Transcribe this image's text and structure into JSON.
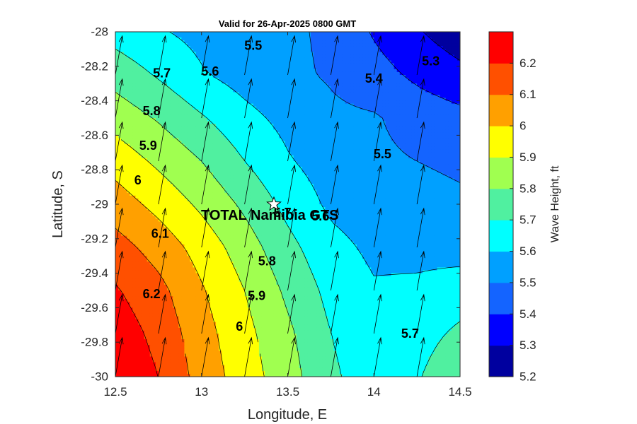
{
  "chart_data": {
    "type": "contour",
    "title": "Valid for 26-Apr-2025 0800 GMT",
    "xlabel": "Longitude, E",
    "ylabel": "Latitude, S",
    "xlim": [
      12.5,
      14.5
    ],
    "ylim": [
      -30,
      -28
    ],
    "x_ticks": [
      "12.5",
      "13",
      "13.5",
      "14",
      "14.5"
    ],
    "y_ticks": [
      "-28",
      "-28.2",
      "-28.4",
      "-28.6",
      "-28.8",
      "-29",
      "-29.2",
      "-29.4",
      "-29.6",
      "-29.8",
      "-30"
    ],
    "colorbar": {
      "label": "Wave Height, ft",
      "levels": [
        5.2,
        5.3,
        5.4,
        5.5,
        5.6,
        5.7,
        5.8,
        5.9,
        6.0,
        6.1,
        6.2,
        6.3
      ],
      "tick_labels": [
        "5.2",
        "5.3",
        "5.4",
        "5.5",
        "5.6",
        "5.7",
        "5.8",
        "5.9",
        "6",
        "6.1",
        "6.2"
      ],
      "colors": [
        "#00009f",
        "#0000ff",
        "#1464ff",
        "#00a0ff",
        "#00ffff",
        "#50f0a0",
        "#a0ff50",
        "#ffff00",
        "#ffa000",
        "#ff5000",
        "#ff0000"
      ]
    },
    "grid_lon": [
      12.5,
      12.75,
      13.0,
      13.25,
      13.5,
      13.75,
      14.0,
      14.25,
      14.5
    ],
    "grid_lat": [
      -28.0,
      -28.25,
      -28.5,
      -28.75,
      -29.0,
      -29.25,
      -29.5,
      -29.75,
      -30.0
    ],
    "wave_height": [
      [
        5.66,
        5.61,
        5.57,
        5.53,
        5.52,
        5.48,
        5.39,
        5.31,
        5.24
      ],
      [
        5.76,
        5.69,
        5.61,
        5.56,
        5.52,
        5.49,
        5.44,
        5.38,
        5.33
      ],
      [
        5.86,
        5.79,
        5.71,
        5.63,
        5.57,
        5.52,
        5.51,
        5.46,
        5.43
      ],
      [
        5.96,
        5.88,
        5.8,
        5.7,
        5.61,
        5.55,
        5.52,
        5.5,
        5.48
      ],
      [
        6.05,
        5.97,
        5.88,
        5.78,
        5.67,
        5.58,
        5.55,
        5.54,
        5.52
      ],
      [
        6.14,
        6.06,
        5.96,
        5.85,
        5.73,
        5.63,
        5.58,
        5.57,
        5.56
      ],
      [
        6.21,
        6.13,
        6.01,
        5.9,
        5.78,
        5.67,
        5.61,
        5.62,
        5.65
      ],
      [
        6.26,
        6.17,
        6.04,
        5.93,
        5.82,
        5.7,
        5.63,
        5.66,
        5.72
      ],
      [
        6.29,
        6.2,
        6.06,
        5.95,
        5.84,
        5.72,
        5.64,
        5.69,
        5.78
      ]
    ],
    "direction_vectors": {
      "lon": [
        12.5,
        12.75,
        13.0,
        13.25,
        13.5,
        13.75,
        14.0,
        14.25,
        14.5
      ],
      "lat": [
        -28.0,
        -28.25,
        -28.5,
        -28.75,
        -29.0,
        -29.25,
        -29.5,
        -29.75,
        -30.0
      ],
      "heading_deg_from_north": 10
    },
    "contour_labels": [
      {
        "text": "5.3",
        "lon": 14.33,
        "lat": -28.17
      },
      {
        "text": "5.4",
        "lon": 14.0,
        "lat": -28.27
      },
      {
        "text": "5.5",
        "lon": 13.3,
        "lat": -28.08
      },
      {
        "text": "5.5",
        "lon": 14.05,
        "lat": -28.71
      },
      {
        "text": "5.6",
        "lon": 13.05,
        "lat": -28.23
      },
      {
        "text": "5.6",
        "lon": 13.69,
        "lat": -29.07
      },
      {
        "text": "5.7",
        "lon": 12.77,
        "lat": -28.24
      },
      {
        "text": "5.7",
        "lon": 13.47,
        "lat": -29.05
      },
      {
        "text": "5.7",
        "lon": 14.21,
        "lat": -29.75
      },
      {
        "text": "5.8",
        "lon": 12.71,
        "lat": -28.46
      },
      {
        "text": "5.8",
        "lon": 13.38,
        "lat": -29.33
      },
      {
        "text": "5.9",
        "lon": 12.69,
        "lat": -28.66
      },
      {
        "text": "5.9",
        "lon": 13.32,
        "lat": -29.53
      },
      {
        "text": "6",
        "lon": 12.63,
        "lat": -28.86
      },
      {
        "text": "6",
        "lon": 13.22,
        "lat": -29.71
      },
      {
        "text": "6.1",
        "lon": 12.76,
        "lat": -29.17
      },
      {
        "text": "6.2",
        "lon": 12.71,
        "lat": -29.52
      }
    ],
    "station": {
      "name": "TOTAL Namibia GTS",
      "lon": 13.42,
      "lat": -29.0
    }
  }
}
